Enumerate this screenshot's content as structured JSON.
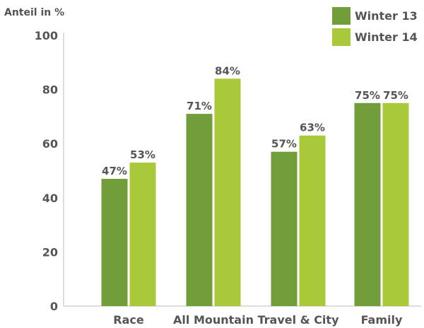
{
  "chart_data": {
    "type": "bar",
    "title": "",
    "ylabel": "Anteil in %",
    "xlabel": "",
    "ylim": [
      0,
      100
    ],
    "yticks": [
      0,
      20,
      40,
      60,
      80,
      100
    ],
    "categories": [
      "Race",
      "All Mountain",
      "Travel & City",
      "Family"
    ],
    "series": [
      {
        "name": "Winter 13",
        "values": [
          47,
          71,
          57,
          75
        ],
        "labels": [
          "47%",
          "71%",
          "57%",
          "75%"
        ],
        "color": "#719d3a"
      },
      {
        "name": "Winter 14",
        "values": [
          53,
          84,
          63,
          75
        ],
        "labels": [
          "53%",
          "84%",
          "63%",
          "75%"
        ],
        "color": "#a9c93a"
      }
    ],
    "legend": "top-right",
    "grid": false
  },
  "colors": {
    "axis": "#bbbbbb",
    "text": "#555555"
  }
}
